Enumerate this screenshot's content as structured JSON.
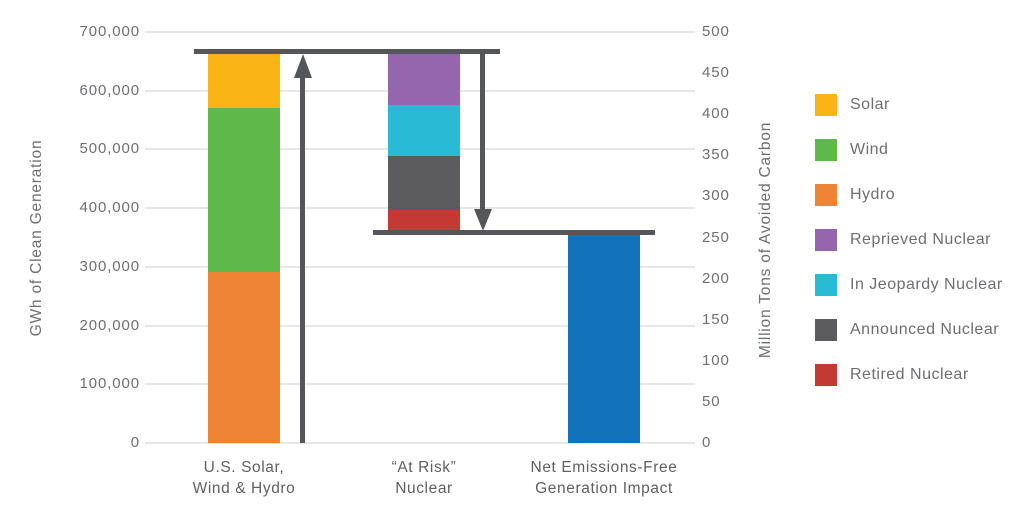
{
  "chart_data": {
    "type": "bar",
    "subtype": "stacked-waterfall",
    "title": "",
    "grid": "on",
    "legend_position": "right",
    "axes": {
      "left": {
        "label": "GWh of Clean Generation",
        "min": 0,
        "max": 700000,
        "ticks": [
          {
            "label": "0",
            "value": 0
          },
          {
            "label": "100,000",
            "value": 100000
          },
          {
            "label": "200,000",
            "value": 200000
          },
          {
            "label": "300,000",
            "value": 300000
          },
          {
            "label": "400,000",
            "value": 400000
          },
          {
            "label": "500,000",
            "value": 500000
          },
          {
            "label": "600,000",
            "value": 600000
          },
          {
            "label": "700,000",
            "value": 700000
          }
        ]
      },
      "right": {
        "label": "Million Tons of Avoided Carbon",
        "min": 0,
        "max": 500,
        "ticks": [
          {
            "label": "0",
            "value": 0
          },
          {
            "label": "50",
            "value": 50
          },
          {
            "label": "100",
            "value": 100
          },
          {
            "label": "150",
            "value": 150
          },
          {
            "label": "200",
            "value": 200
          },
          {
            "label": "250",
            "value": 250
          },
          {
            "label": "300",
            "value": 300
          },
          {
            "label": "350",
            "value": 350
          },
          {
            "label": "400",
            "value": 400
          },
          {
            "label": "450",
            "value": 450
          },
          {
            "label": "500",
            "value": 500
          }
        ]
      }
    },
    "categories": [
      {
        "line1": "U.S. Solar,",
        "line2": "Wind & Hydro"
      },
      {
        "line1": "“At Risk”",
        "line2": "Nuclear"
      },
      {
        "line1": "Net Emissions-Free",
        "line2": "Generation Impact"
      }
    ],
    "bars": [
      {
        "category": "U.S. Solar, Wind & Hydro",
        "segments": [
          {
            "name": "Hydro",
            "from": 0,
            "to": 292000,
            "value": 292000,
            "color": "#EE8434"
          },
          {
            "name": "Wind",
            "from": 292000,
            "to": 570000,
            "value": 278000,
            "color": "#5EB949"
          },
          {
            "name": "Solar",
            "from": 570000,
            "to": 666000,
            "value": 96000,
            "color": "#FBB416"
          }
        ]
      },
      {
        "category": "“At Risk” Nuclear",
        "segments": [
          {
            "name": "Retired Nuclear",
            "from": 358000,
            "to": 397000,
            "value": 39000,
            "color": "#C23A33"
          },
          {
            "name": "Announced Nuclear",
            "from": 397000,
            "to": 489000,
            "value": 92000,
            "color": "#5C5C5E"
          },
          {
            "name": "In Jeopardy Nuclear",
            "from": 489000,
            "to": 576000,
            "value": 87000,
            "color": "#29BAD6"
          },
          {
            "name": "Reprieved Nuclear",
            "from": 576000,
            "to": 666000,
            "value": 90000,
            "color": "#9565AE"
          }
        ]
      },
      {
        "category": "Net Emissions-Free Generation Impact",
        "segments": [
          {
            "name": "Net Emissions-Free Generation",
            "from": 0,
            "to": 358000,
            "value": 358000,
            "color": "#1273BA"
          }
        ]
      }
    ],
    "annotations": {
      "top_reference_line_value": 666000,
      "net_reference_line_value": 358000,
      "up_arrow": {
        "from": 0,
        "to": 666000
      },
      "down_arrow": {
        "from": 666000,
        "to": 358000
      }
    },
    "legend": [
      {
        "label": "Solar",
        "color": "#FBB416"
      },
      {
        "label": "Wind",
        "color": "#5EB949"
      },
      {
        "label": "Hydro",
        "color": "#EE8434"
      },
      {
        "label": "Reprieved Nuclear",
        "color": "#9565AE"
      },
      {
        "label": "In Jeopardy Nuclear",
        "color": "#29BAD6"
      },
      {
        "label": "Announced Nuclear",
        "color": "#5C5C5E"
      },
      {
        "label": "Retired Nuclear",
        "color": "#C23A33"
      }
    ],
    "colors": {
      "arrow": "#55565A",
      "grid": "#E7E7E8",
      "text": "#6D6E71"
    }
  }
}
